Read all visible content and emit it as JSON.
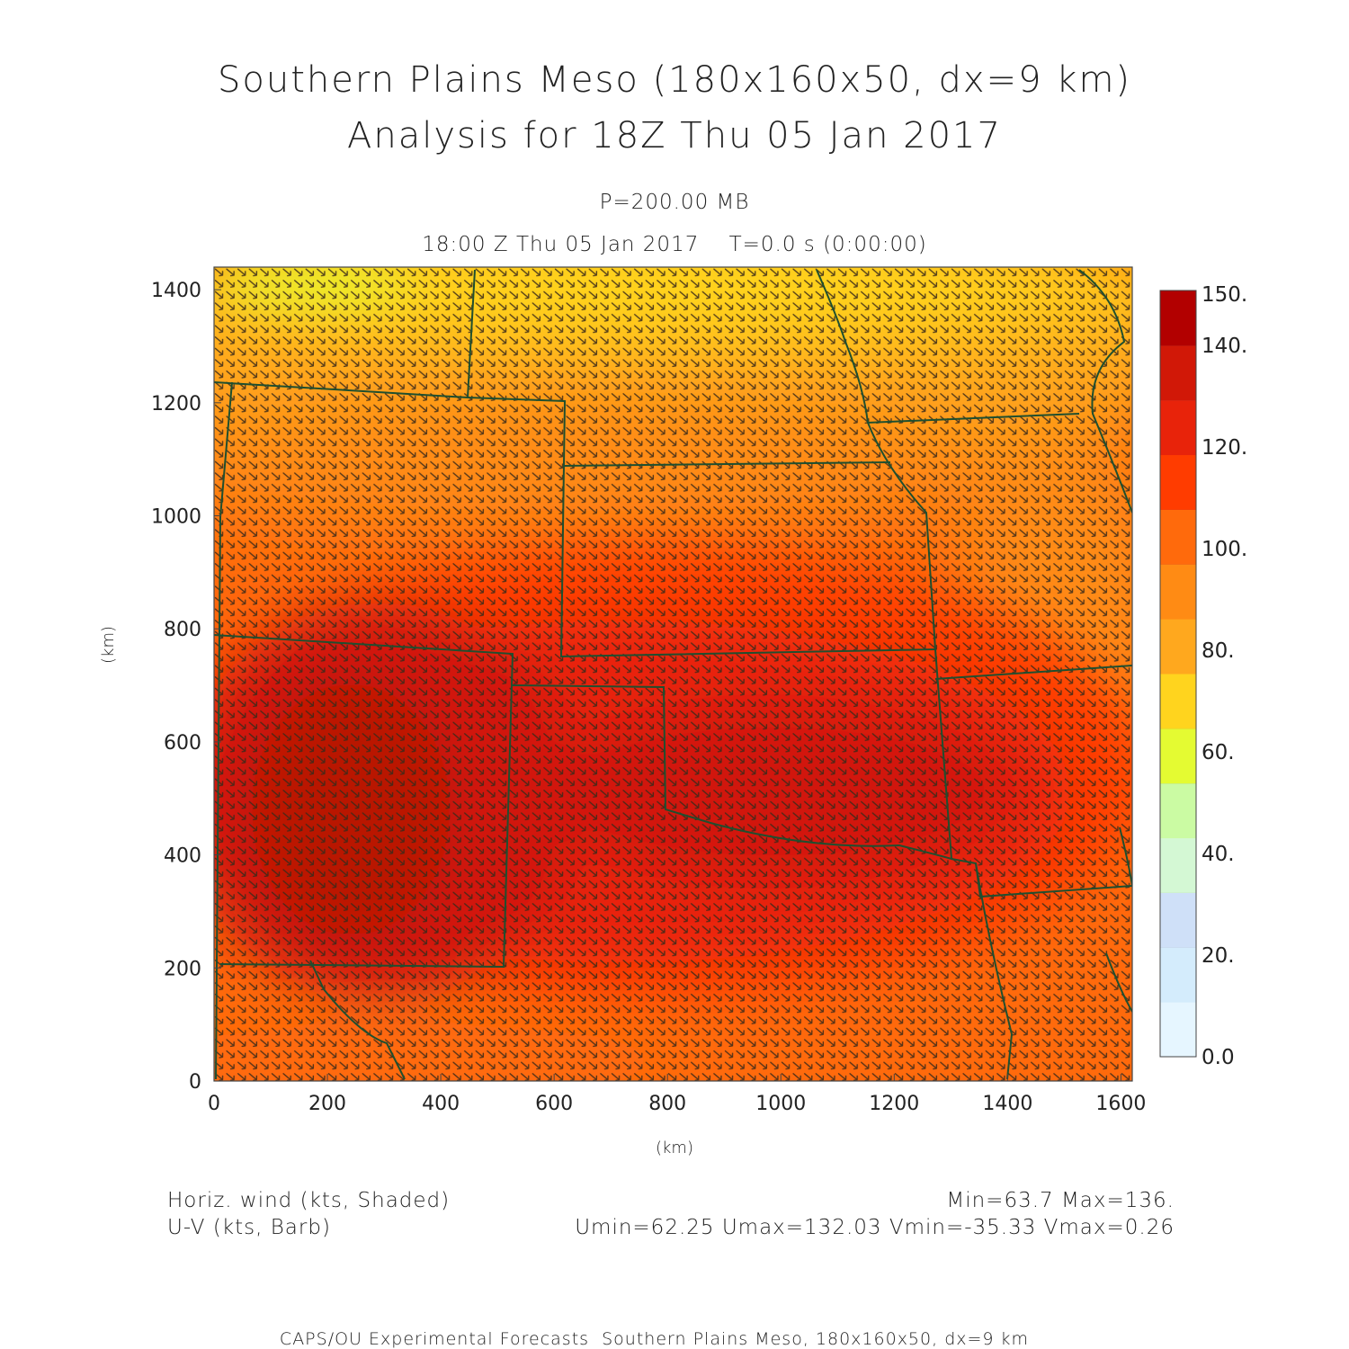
{
  "title": "Southern Plains Meso (180x160x50, dx=9 km)",
  "subtitle": "Analysis for 18Z Thu 05 Jan 2017",
  "level_label": "P=200.00 MB",
  "valid_time": "18:00 Z Thu 05 Jan 2017    T=0.0 s (0:00:00)",
  "x_axis": {
    "label": "(km)",
    "ticks": [
      "0",
      "200",
      "400",
      "600",
      "800",
      "1000",
      "1200",
      "1400",
      "1600"
    ],
    "range": [
      0,
      1620
    ]
  },
  "y_axis": {
    "label": "(km)",
    "ticks": [
      "0",
      "200",
      "400",
      "600",
      "800",
      "1000",
      "1200",
      "1400"
    ],
    "range": [
      0,
      1440
    ]
  },
  "colorbar": {
    "labels": [
      "0.0",
      "20.",
      "40.",
      "60.",
      "80.",
      "100.",
      "120.",
      "140.",
      "150."
    ],
    "colors": [
      "#e6f6ff",
      "#d4ecfc",
      "#cfe0f8",
      "#d4f8d4",
      "#cbfba3",
      "#e4fb32",
      "#ffd41e",
      "#ffa81e",
      "#ff8b14",
      "#ff6a0c",
      "#ff3c00",
      "#e8230a",
      "#d11807",
      "#b20000"
    ]
  },
  "legend": {
    "shaded": "Horiz. wind (kts, Shaded)",
    "barb": "U-V (kts, Barb)"
  },
  "stats": {
    "minmax": "Min=63.7 Max=136.",
    "uv": "Umin=62.25 Umax=132.03 Vmin=-35.33 Vmax=0.26"
  },
  "footer": "CAPS/OU Experimental Forecasts  Southern Plains Meso, 180x160x50, dx=9 km",
  "colors": {
    "border": "#1f4f2f",
    "barb": "#3a2a1a",
    "frame": "#444444"
  }
}
